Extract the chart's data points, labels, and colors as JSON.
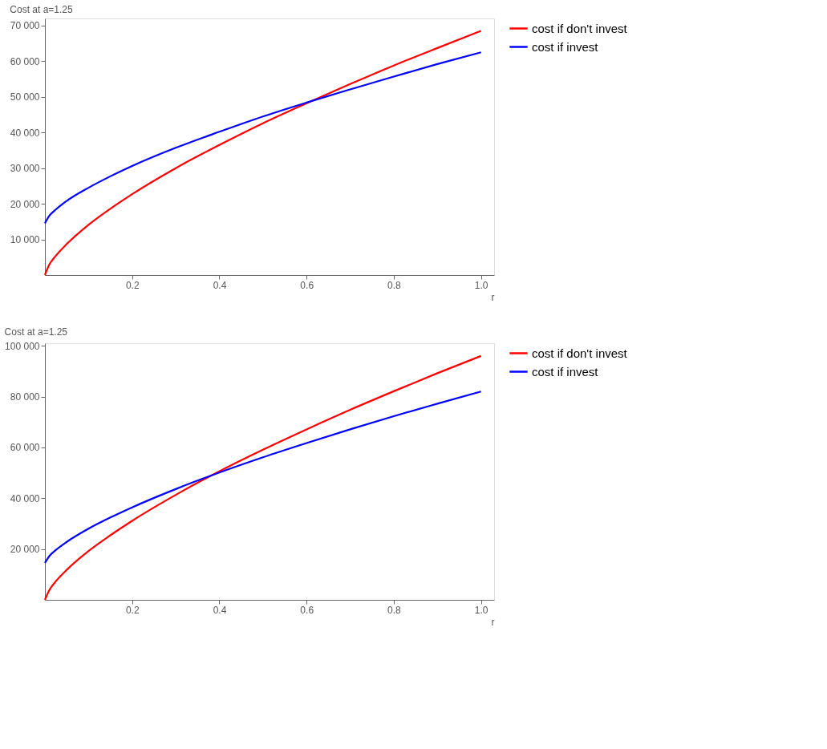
{
  "chart_data": [
    {
      "type": "line",
      "title": "Cost at a=1.25",
      "xlabel": "r",
      "x": [
        0,
        0.01,
        0.025,
        0.05,
        0.1,
        0.15,
        0.2,
        0.3,
        0.4,
        0.5,
        0.6,
        0.7,
        0.8,
        0.9,
        1.0
      ],
      "series": [
        {
          "name": "cost if don't invest",
          "color": "#ff0000",
          "values": [
            0,
            2900,
            5400,
            8700,
            14100,
            18600,
            22700,
            30000,
            36500,
            42600,
            48200,
            53600,
            58800,
            63700,
            68500
          ]
        },
        {
          "name": "cost if invest",
          "color": "#0000ff",
          "values": [
            14500,
            16600,
            18400,
            20800,
            24500,
            27700,
            30600,
            35700,
            40200,
            44500,
            48400,
            52100,
            55700,
            59200,
            62500
          ]
        }
      ],
      "xlim": [
        0,
        1.03
      ],
      "ylim": [
        0,
        72000
      ],
      "xticks": [
        0.2,
        0.4,
        0.6,
        0.8,
        {
          "value": 1.0,
          "label": "1.0"
        }
      ],
      "yticks": [
        {
          "value": 10000,
          "label": "10 000"
        },
        {
          "value": 20000,
          "label": "20 000"
        },
        {
          "value": 30000,
          "label": "30 000"
        },
        {
          "value": 40000,
          "label": "40 000"
        },
        {
          "value": 50000,
          "label": "50 000"
        },
        {
          "value": 60000,
          "label": "60 000"
        },
        {
          "value": 70000,
          "label": "70 000"
        }
      ],
      "grid": false,
      "legend": "right",
      "line_style": "solid"
    },
    {
      "type": "line",
      "title": "Cost at a=1.25",
      "xlabel": "r",
      "x": [
        0,
        0.01,
        0.025,
        0.05,
        0.1,
        0.15,
        0.2,
        0.3,
        0.4,
        0.5,
        0.6,
        0.7,
        0.8,
        0.9,
        1.0
      ],
      "series": [
        {
          "name": "cost if don't invest",
          "color": "#ff0000",
          "values": [
            0,
            3800,
            7300,
            11800,
            19200,
            25400,
            31100,
            41300,
            50600,
            59100,
            67100,
            74800,
            82100,
            89200,
            96000
          ]
        },
        {
          "name": "cost if invest",
          "color": "#0000ff",
          "values": [
            14500,
            17200,
            19600,
            22800,
            28000,
            32400,
            36400,
            43600,
            50100,
            56100,
            61700,
            67100,
            72300,
            77200,
            82000
          ]
        }
      ],
      "xlim": [
        0,
        1.03
      ],
      "ylim": [
        0,
        101000
      ],
      "xticks": [
        0.2,
        0.4,
        0.6,
        0.8,
        {
          "value": 1.0,
          "label": "1.0"
        }
      ],
      "yticks": [
        {
          "value": 20000,
          "label": "20 000"
        },
        {
          "value": 40000,
          "label": "40 000"
        },
        {
          "value": 60000,
          "label": "60 000"
        },
        {
          "value": 80000,
          "label": "80 000"
        },
        {
          "value": 100000,
          "label": "100 000"
        }
      ],
      "grid": false,
      "legend": "right",
      "line_style": "solid"
    }
  ]
}
